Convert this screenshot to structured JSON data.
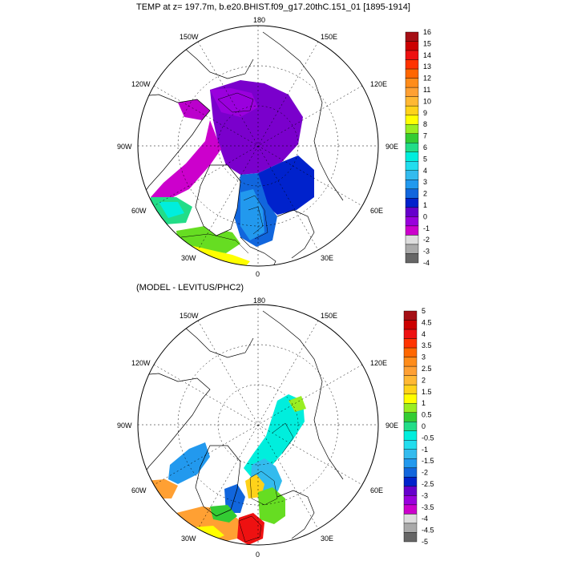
{
  "panels": [
    {
      "title": "TEMP at z= 197.7m, b.e20.BHIST.f09_g17.20thC.151_01 [1895-1914]",
      "lon_labels": {
        "top": "180",
        "bottom": "0",
        "left": "90W",
        "right": "90E",
        "ul": "150W",
        "ur": "150E",
        "ul2": "120W",
        "ur2": "120E",
        "ll": "60W",
        "lr": "60E",
        "ll2": "30W",
        "lr2": "30E"
      },
      "colorbar": {
        "labels": [
          "16",
          "15",
          "14",
          "13",
          "12",
          "11",
          "10",
          "9",
          "8",
          "7",
          "6",
          "5",
          "4",
          "3",
          "2",
          "1",
          "0",
          "-1",
          "-2",
          "-3",
          "-4"
        ],
        "colors": [
          "#a50f15",
          "#cc0000",
          "#ee1111",
          "#ff3300",
          "#ff6600",
          "#ff8c1a",
          "#ffa033",
          "#ffb833",
          "#ffd21a",
          "#ffff00",
          "#99ee22",
          "#33cc33",
          "#22dd88",
          "#00eedd",
          "#22ddee",
          "#33bbee",
          "#2299ee",
          "#1166dd",
          "#0022cc",
          "#6600cc",
          "#9900dd",
          "#cc00cc",
          "#dddddd",
          "#aaaaaa",
          "#666666"
        ]
      }
    },
    {
      "title": "(MODEL - LEVITUS/PHC2)",
      "lon_labels": {
        "top": "180",
        "bottom": "0",
        "left": "90W",
        "right": "90E",
        "ul": "150W",
        "ur": "150E",
        "ul2": "120W",
        "ur2": "120E",
        "ll": "60W",
        "lr": "60E",
        "ll2": "30W",
        "lr2": "30E"
      },
      "colorbar": {
        "labels": [
          "5",
          "4.5",
          "4",
          "3.5",
          "3",
          "2.5",
          "2",
          "1.5",
          "1",
          "0.5",
          "0",
          "-0.5",
          "-1",
          "-1.5",
          "-2",
          "-2.5",
          "-3",
          "-3.5",
          "-4",
          "-4.5",
          "-5"
        ],
        "colors": [
          "#a50f15",
          "#cc0000",
          "#ee1111",
          "#ff3300",
          "#ff6600",
          "#ff8c1a",
          "#ffa033",
          "#ffb833",
          "#ffd21a",
          "#ffff00",
          "#99ee22",
          "#33cc33",
          "#22dd88",
          "#00eedd",
          "#22ddee",
          "#33bbee",
          "#2299ee",
          "#1166dd",
          "#0022cc",
          "#6600cc",
          "#9900dd",
          "#cc00cc",
          "#dddddd",
          "#aaaaaa",
          "#666666"
        ]
      }
    }
  ]
}
